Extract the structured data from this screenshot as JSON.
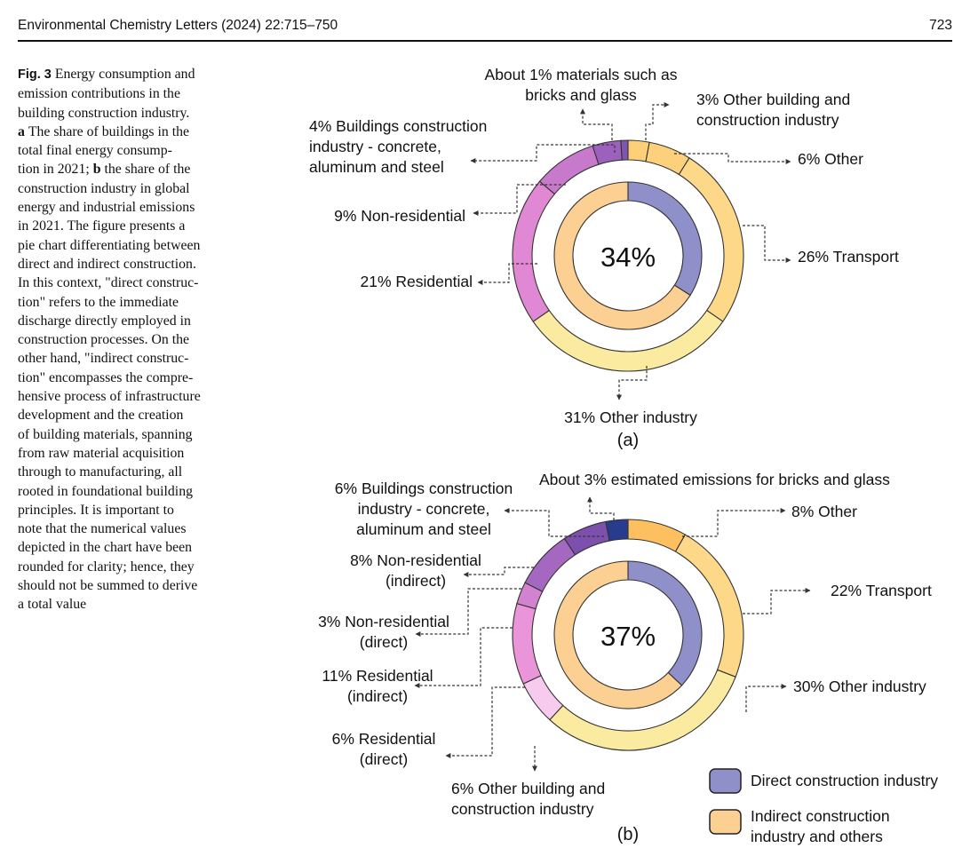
{
  "header": {
    "journal": "Environmental Chemistry Letters (2024) 22:715–750",
    "page": "723"
  },
  "caption": {
    "label": "Fig. 3",
    "lines": [
      "Energy consumption and",
      "emission contributions in the",
      "building construction industry.",
      "{a}The share of buildings in the",
      "total final energy consump-",
      "tion in 2021; {b}the share of the",
      "construction industry in global",
      "energy and industrial emissions",
      "in 2021. The figure presents a",
      "pie chart differentiating between",
      "direct and indirect construction.",
      "In this context, \"direct construc-",
      "tion\" refers to the immediate",
      "discharge directly employed in",
      "construction processes. On the",
      "other hand, \"indirect construc-",
      "tion\" encompasses the compre-",
      "hensive process of infrastructure",
      "development and the creation",
      "of building materials, spanning",
      "from raw material acquisition",
      "through to manufacturing, all",
      "rooted in foundational building",
      "principles. It is important to",
      "note that the numerical values",
      "depicted in the chart have been",
      "rounded for clarity; hence, they",
      "should not be summed to derive",
      "a total value"
    ]
  },
  "colors": {
    "direct": "#8f8fc9",
    "indirect": "#fccf92",
    "leader": "#333333"
  },
  "chart_data": [
    {
      "type": "pie",
      "panel_label": "(a)",
      "center_label": "34%",
      "inner_ring": [
        {
          "name": "Direct construction industry",
          "value": 34,
          "color": "#8f8fc9"
        },
        {
          "name": "Indirect construction industry and others",
          "value": 66,
          "color": "#fccf92"
        }
      ],
      "outer_ring": [
        {
          "label": "3% Other building and construction industry",
          "value": 3,
          "color": "#fccf78"
        },
        {
          "label": "6% Other",
          "value": 6,
          "color": "#fdd07c"
        },
        {
          "label": "26% Transport",
          "value": 26,
          "color": "#fed889"
        },
        {
          "label": "31% Other industry",
          "value": 31,
          "color": "#fbeba1"
        },
        {
          "label": "21% Residential",
          "value": 21,
          "color": "#e088d4"
        },
        {
          "label": "9% Non-residential",
          "value": 9,
          "color": "#c779cb"
        },
        {
          "label": "4% Buildings construction industry - concrete, aluminum and steel",
          "value": 4,
          "color": "#9b61bc"
        },
        {
          "label": "About 1% materials such as bricks and glass",
          "value": 1,
          "color": "#7f55ae"
        }
      ]
    },
    {
      "type": "pie",
      "panel_label": "(b)",
      "center_label": "37%",
      "inner_ring": [
        {
          "name": "Direct construction industry",
          "value": 37,
          "color": "#8f8fc9"
        },
        {
          "name": "Indirect construction industry and others",
          "value": 63,
          "color": "#fccf92"
        }
      ],
      "outer_ring": [
        {
          "label": "8% Other",
          "value": 8,
          "color": "#fcc061"
        },
        {
          "label": "22% Transport",
          "value": 22,
          "color": "#fed889"
        },
        {
          "label": "30% Other industry",
          "value": 30,
          "color": "#fbeba1"
        },
        {
          "label": "6% Residential (direct)",
          "value": 6,
          "color": "#f7cbed"
        },
        {
          "label": "11% Residential (indirect)",
          "value": 11,
          "color": "#ea95da"
        },
        {
          "label": "3% Non-residential (direct)",
          "value": 3,
          "color": "#d283d0"
        },
        {
          "label": "8% Non-residential (indirect)",
          "value": 8,
          "color": "#a568c1"
        },
        {
          "label": "6% Buildings construction industry - concrete, aluminum and steel",
          "value": 6,
          "color": "#7d50ad"
        },
        {
          "label": "About 3% estimated emissions for bricks and glass",
          "value": 3,
          "color": "#283c8e"
        }
      ]
    }
  ],
  "legend": [
    {
      "label": "Direct construction industry",
      "color": "#8f8fc9"
    },
    {
      "label_lines": [
        "Indirect construction",
        "industry and others"
      ],
      "color": "#fccf92"
    }
  ],
  "labels_a": {
    "materials": [
      "About 1% materials such as",
      "bricks and glass"
    ],
    "other_building": [
      "3% Other building and",
      "construction industry"
    ],
    "concrete": [
      "4% Buildings construction",
      "industry - concrete,",
      "aluminum and steel"
    ],
    "other": "6% Other",
    "nonres": "9% Non-residential",
    "transport": "26% Transport",
    "res": "21% Residential",
    "otherind": "31% Other industry"
  },
  "labels_b": {
    "bricks": "About 3% estimated emissions for bricks and glass",
    "concrete": [
      "6% Buildings construction",
      "industry - concrete,",
      "aluminum and steel"
    ],
    "other": "8% Other",
    "nonres_ind": [
      "8% Non-residential",
      "(indirect)"
    ],
    "transport": "22% Transport",
    "nonres_dir": [
      "3% Non-residential",
      "(direct)"
    ],
    "otherind": "30% Other industry",
    "res_ind": [
      "11% Residential",
      "(indirect)"
    ],
    "res_dir": [
      "6% Residential",
      "(direct)"
    ],
    "other_building": [
      "6% Other building and",
      "construction industry"
    ]
  }
}
